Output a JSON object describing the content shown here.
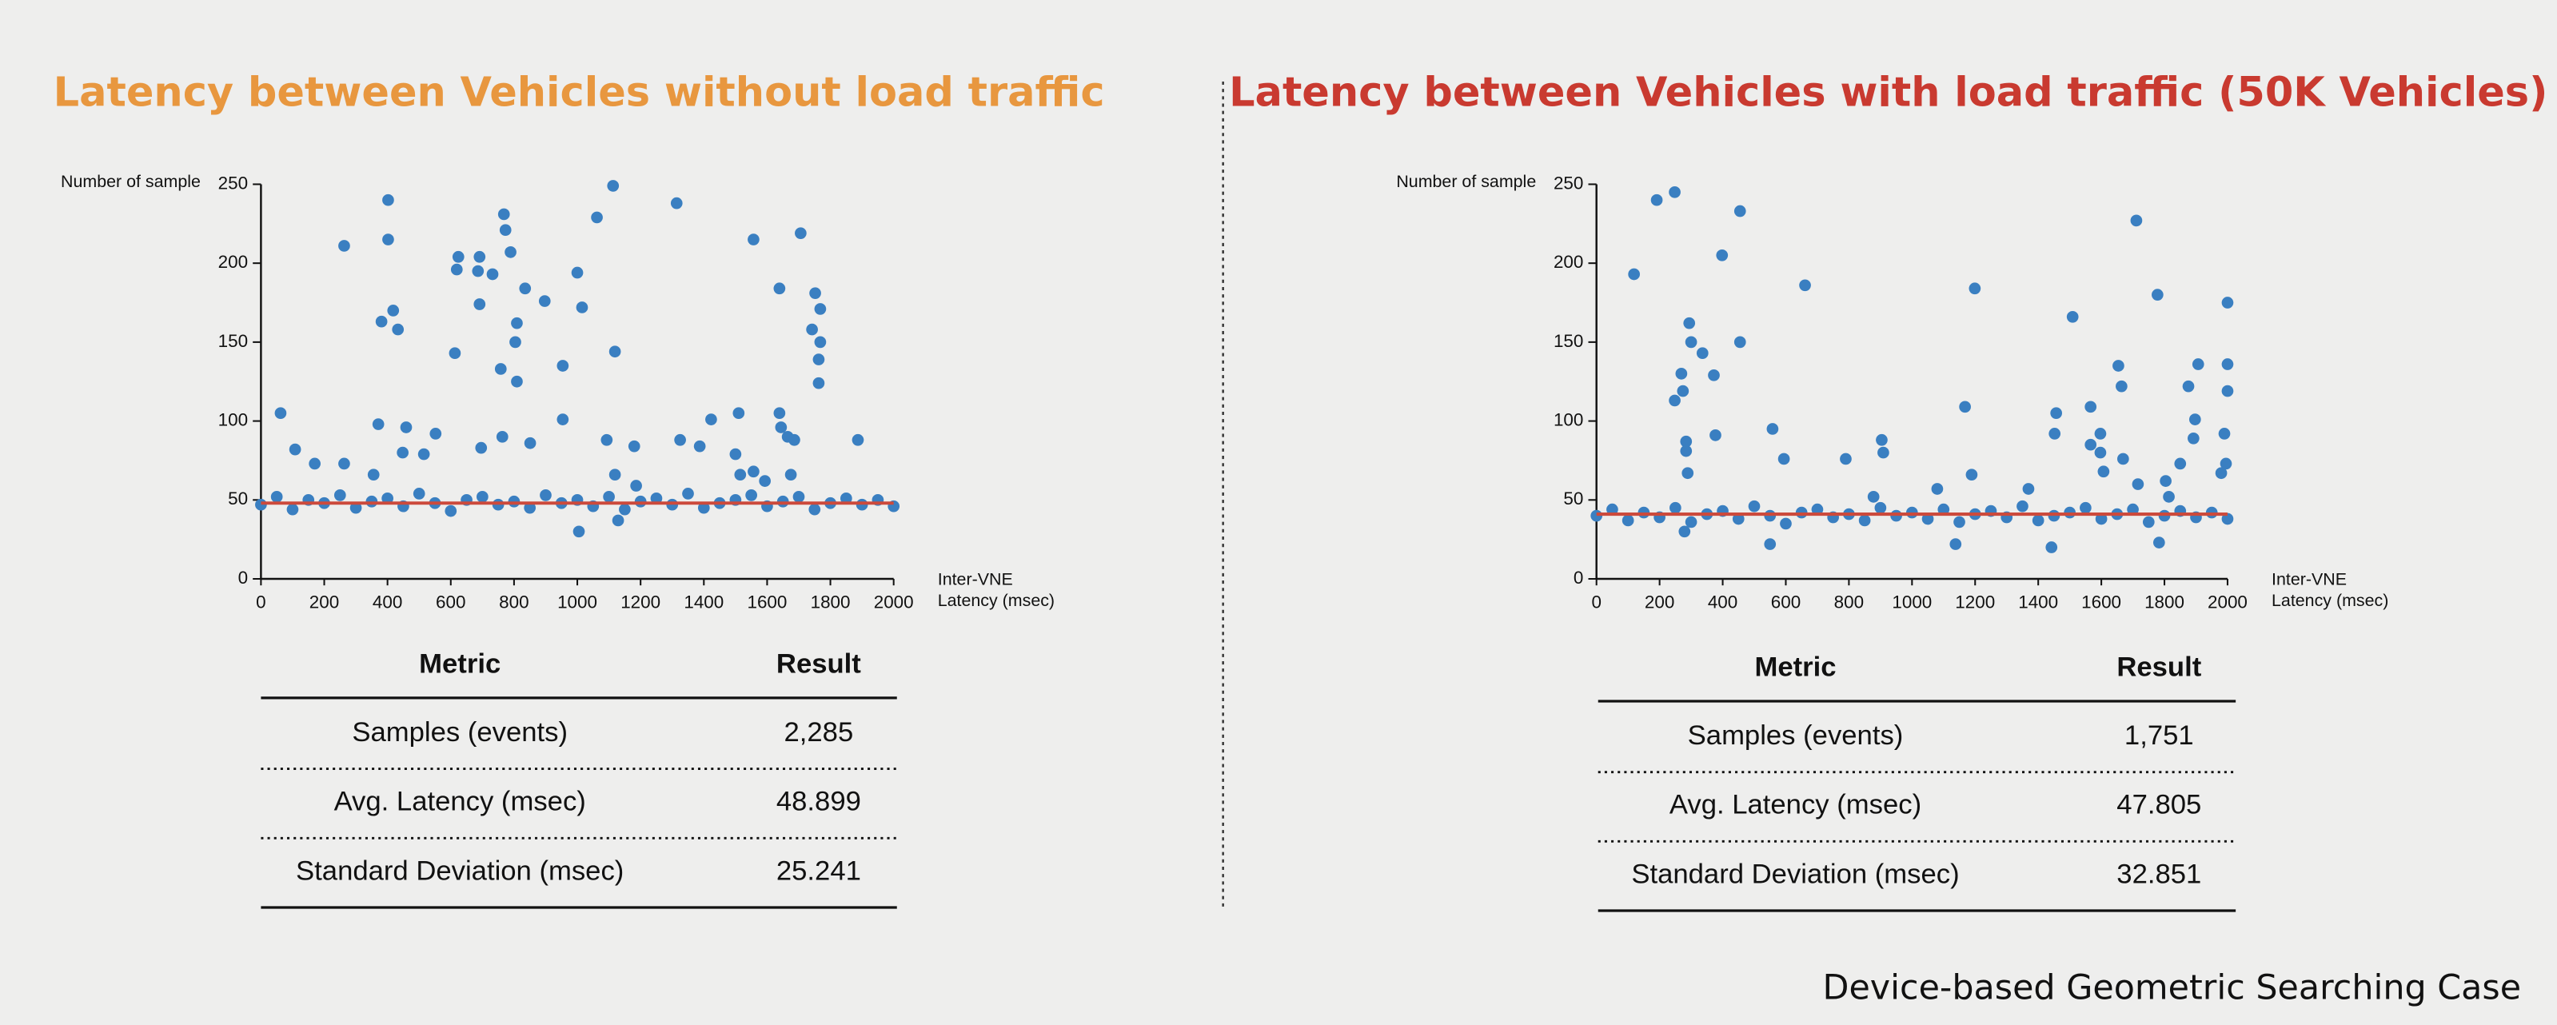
{
  "chart_data": [
    {
      "type": "scatter",
      "title": "Latency between Vehicles without load traffic",
      "title_color": "#e8973f",
      "ylabel": "Number of sample",
      "xlabel": [
        "Inter-VNE",
        "Latency (msec)"
      ],
      "xlim": [
        0,
        2000
      ],
      "ylim": [
        0,
        250
      ],
      "xticks": [
        0,
        200,
        400,
        600,
        800,
        1000,
        1200,
        1400,
        1600,
        1800,
        2000
      ],
      "yticks": [
        0,
        50,
        100,
        150,
        200,
        250
      ],
      "reference_line": {
        "y": 48,
        "color": "#cc4a3c"
      },
      "series": [
        {
          "color": "#3a7fc1",
          "x": [
            62,
            108,
            170,
            263,
            263,
            356,
            371,
            381,
            402,
            402,
            418,
            433,
            448,
            459,
            515,
            552,
            613,
            619,
            624,
            686,
            691,
            691,
            696,
            732,
            758,
            763,
            768,
            773,
            789,
            809,
            804,
            809,
            835,
            851,
            897,
            954,
            954,
            1000,
            1015,
            1005,
            1062,
            1093,
            1113,
            1119,
            1119,
            1129,
            1180,
            1186,
            1314,
            1325,
            1387,
            1423,
            1500,
            1510,
            1515,
            1557,
            1557,
            1593,
            1639,
            1639,
            1644,
            1665,
            1675,
            1706,
            1686,
            1742,
            1752,
            1763,
            1763,
            1768,
            1768,
            1887,
            0,
            50,
            100,
            150,
            200,
            250,
            300,
            350,
            400,
            450,
            500,
            550,
            600,
            650,
            700,
            750,
            800,
            850,
            900,
            950,
            1000,
            1050,
            1100,
            1150,
            1200,
            1250,
            1300,
            1350,
            1400,
            1450,
            1500,
            1550,
            1600,
            1650,
            1700,
            1750,
            1800,
            1850,
            1900,
            1950,
            2000
          ],
          "values": [
            105,
            82,
            73,
            211,
            73,
            66,
            98,
            163,
            240,
            215,
            170,
            158,
            80,
            96,
            79,
            92,
            143,
            196,
            204,
            195,
            204,
            174,
            83,
            193,
            133,
            90,
            231,
            221,
            207,
            162,
            150,
            125,
            184,
            86,
            176,
            135,
            101,
            194,
            172,
            30,
            229,
            88,
            249,
            144,
            66,
            37,
            84,
            59,
            238,
            88,
            84,
            101,
            79,
            105,
            66,
            215,
            68,
            62,
            184,
            105,
            96,
            90,
            66,
            219,
            88,
            158,
            181,
            124,
            139,
            171,
            150,
            88,
            47,
            52,
            44,
            50,
            48,
            53,
            45,
            49,
            51,
            46,
            54,
            48,
            43,
            50,
            52,
            47,
            49,
            45,
            53,
            48,
            50,
            46,
            52,
            44,
            49,
            51,
            47,
            54,
            45,
            48,
            50,
            53,
            46,
            49,
            52,
            44,
            48,
            51,
            47,
            50,
            46
          ]
        }
      ]
    },
    {
      "type": "scatter",
      "title": "Latency between Vehicles with load traffic (50K Vehicles)",
      "title_color": "#c93a30",
      "ylabel": "Number of sample",
      "xlabel": [
        "Inter-VNE",
        "Latency (msec)"
      ],
      "xlim": [
        0,
        2000
      ],
      "ylim": [
        0,
        250
      ],
      "xticks": [
        0,
        200,
        400,
        600,
        800,
        1000,
        1200,
        1400,
        1600,
        1800,
        2000
      ],
      "yticks": [
        0,
        50,
        100,
        150,
        200,
        250
      ],
      "reference_line": {
        "y": 41,
        "color": "#cc4a3c"
      },
      "series": [
        {
          "color": "#3a7fc1",
          "x": [
            119,
            191,
            248,
            248,
            269,
            274,
            284,
            284,
            289,
            294,
            300,
            336,
            372,
            377,
            398,
            455,
            455,
            558,
            594,
            661,
            790,
            878,
            904,
            909,
            1080,
            1168,
            1199,
            1189,
            1369,
            1452,
            1457,
            1509,
            1566,
            1566,
            1597,
            1597,
            1607,
            1654,
            1664,
            1669,
            1711,
            1716,
            1778,
            1814,
            1804,
            1850,
            1876,
            1892,
            1897,
            1907,
            1980,
            1990,
            1995,
            2000,
            2000,
            2000,
            550,
            1138,
            1442,
            1783,
            279,
            0,
            50,
            100,
            150,
            200,
            250,
            300,
            350,
            400,
            450,
            500,
            550,
            600,
            650,
            700,
            750,
            800,
            850,
            900,
            950,
            1000,
            1050,
            1100,
            1150,
            1200,
            1250,
            1300,
            1350,
            1400,
            1450,
            1500,
            1550,
            1600,
            1650,
            1700,
            1750,
            1800,
            1850,
            1900,
            1950,
            2000
          ],
          "values": [
            193,
            240,
            245,
            113,
            130,
            119,
            87,
            81,
            67,
            162,
            150,
            143,
            129,
            91,
            205,
            233,
            150,
            95,
            76,
            186,
            76,
            52,
            88,
            80,
            57,
            109,
            184,
            66,
            57,
            92,
            105,
            166,
            109,
            85,
            92,
            80,
            68,
            135,
            122,
            76,
            227,
            60,
            180,
            52,
            62,
            73,
            122,
            89,
            101,
            136,
            67,
            92,
            73,
            175,
            136,
            119,
            22,
            22,
            20,
            23,
            30,
            40,
            44,
            37,
            42,
            39,
            45,
            36,
            41,
            43,
            38,
            46,
            40,
            35,
            42,
            44,
            39,
            41,
            37,
            45,
            40,
            42,
            38,
            44,
            36,
            41,
            43,
            39,
            46,
            37,
            40,
            42,
            45,
            38,
            41,
            44,
            36,
            40,
            43,
            39,
            42,
            38
          ]
        }
      ]
    }
  ],
  "tables": [
    {
      "header": [
        "Metric",
        "Result"
      ],
      "rows": [
        [
          "Samples (events)",
          "2,285"
        ],
        [
          "Avg. Latency (msec)",
          "48.899"
        ],
        [
          "Standard Deviation (msec)",
          "25.241"
        ]
      ]
    },
    {
      "header": [
        "Metric",
        "Result"
      ],
      "rows": [
        [
          "Samples (events)",
          "1,751"
        ],
        [
          "Avg. Latency (msec)",
          "47.805"
        ],
        [
          "Standard Deviation (msec)",
          "32.851"
        ]
      ]
    }
  ],
  "footer": "Device-based Geometric Searching Case"
}
